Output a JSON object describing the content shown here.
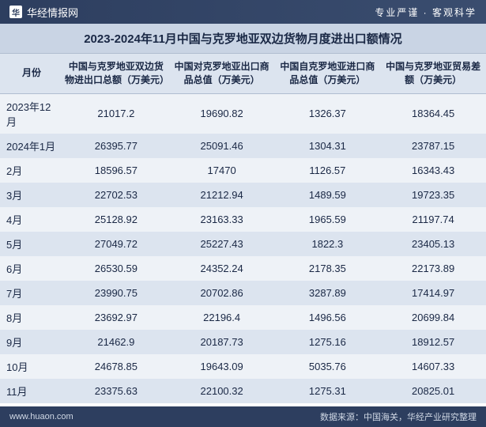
{
  "header": {
    "brand": "华经情报网",
    "tagline": "专业严谨 · 客观科学"
  },
  "title": "2023-2024年11月中国与克罗地亚双边货物月度进出口额情况",
  "table": {
    "columns": [
      "月份",
      "中国与克罗地亚双边货物进出口总额（万美元）",
      "中国对克罗地亚出口商品总值（万美元）",
      "中国自克罗地亚进口商品总值（万美元）",
      "中国与克罗地亚贸易差额（万美元）"
    ],
    "rows": [
      [
        "2023年12月",
        "21017.2",
        "19690.82",
        "1326.37",
        "18364.45"
      ],
      [
        "2024年1月",
        "26395.77",
        "25091.46",
        "1304.31",
        "23787.15"
      ],
      [
        "2月",
        "18596.57",
        "17470",
        "1126.57",
        "16343.43"
      ],
      [
        "3月",
        "22702.53",
        "21212.94",
        "1489.59",
        "19723.35"
      ],
      [
        "4月",
        "25128.92",
        "23163.33",
        "1965.59",
        "21197.74"
      ],
      [
        "5月",
        "27049.72",
        "25227.43",
        "1822.3",
        "23405.13"
      ],
      [
        "6月",
        "26530.59",
        "24352.24",
        "2178.35",
        "22173.89"
      ],
      [
        "7月",
        "23990.75",
        "20702.86",
        "3287.89",
        "17414.97"
      ],
      [
        "8月",
        "23692.97",
        "22196.4",
        "1496.56",
        "20699.84"
      ],
      [
        "9月",
        "21462.9",
        "20187.73",
        "1275.16",
        "18912.57"
      ],
      [
        "10月",
        "24678.85",
        "19643.09",
        "5035.76",
        "14607.33"
      ],
      [
        "11月",
        "23375.63",
        "22100.32",
        "1275.31",
        "20825.01"
      ]
    ]
  },
  "footer": {
    "site": "www.huaon.com",
    "source": "数据来源：中国海关，华经产业研究整理"
  },
  "styling": {
    "header_bg": "#2d3e5f",
    "title_bg": "#c9d4e4",
    "row_odd_bg": "#eef2f7",
    "row_even_bg": "#dce4ef",
    "text_color": "#1a2845",
    "header_text": "#ffffff",
    "title_fontsize": 15,
    "header_fontsize": 12,
    "cell_fontsize": 13,
    "footer_fontsize": 11,
    "col_widths_pct": [
      13,
      22,
      22,
      22,
      21
    ]
  }
}
